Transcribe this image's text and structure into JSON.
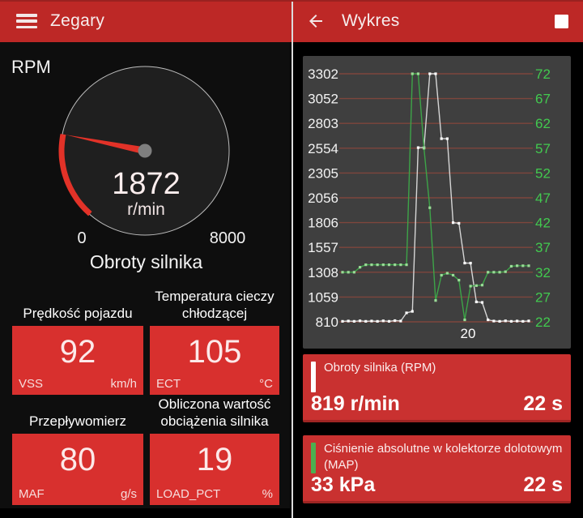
{
  "left_panel": {
    "appbar": {
      "title": "Zegary"
    },
    "gauge": {
      "corner_label": "RPM",
      "value": "1872",
      "unit": "r/min",
      "min_label": "0",
      "max_label": "8000",
      "caption": "Obroty silnika",
      "min": 0,
      "max": 8000,
      "current": 1872,
      "accent_color": "#e23228"
    },
    "tiles": [
      {
        "title": "Prędkość pojazdu",
        "value": "92",
        "pid": "VSS",
        "unit": "km/h"
      },
      {
        "title": "Temperatura cieczy chłodzącej",
        "value": "105",
        "pid": "ECT",
        "unit": "°C"
      },
      {
        "title": "Przepływomierz",
        "value": "80",
        "pid": "MAF",
        "unit": "g/s"
      },
      {
        "title": "Obliczona wartość obciążenia silnika",
        "value": "19",
        "pid": "LOAD_PCT",
        "unit": "%"
      }
    ]
  },
  "right_panel": {
    "appbar": {
      "title": "Wykres"
    },
    "cards": [
      {
        "series_color": "#ffffff",
        "label": "Obroty silnika (RPM)",
        "value": "819 r/min",
        "time": "22 s"
      },
      {
        "series_color": "#4caf50",
        "label": "Ciśnienie absolutne w kolektorze dolotowym (MAP)",
        "value": "33 kPa",
        "time": "22 s"
      }
    ]
  },
  "chart_data": {
    "type": "line",
    "background": "#3f3f3f",
    "gridline_color": "#7e463d",
    "grid": "horizontal",
    "x_axis": {
      "tick_label": "20",
      "tick_fraction": 0.674
    },
    "left_axis": {
      "color": "#f2f2f2",
      "min": 810,
      "max": 3302,
      "ticks": [
        3302,
        3052,
        2803,
        2554,
        2305,
        2056,
        1806,
        1557,
        1308,
        1059,
        810
      ]
    },
    "right_axis": {
      "color": "#42c94f",
      "min": 22,
      "max": 72,
      "ticks": [
        72,
        67,
        62,
        57,
        52,
        47,
        42,
        37,
        32,
        27,
        22
      ]
    },
    "series": [
      {
        "name": "Obroty silnika (RPM)",
        "axis": "left",
        "color": "#d6d6d6",
        "marker_color": "#ffffff",
        "values": [
          815,
          818,
          815,
          820,
          815,
          818,
          815,
          820,
          815,
          822,
          818,
          900,
          915,
          2560,
          2560,
          3302,
          3302,
          2650,
          2650,
          1806,
          1800,
          1400,
          1400,
          1010,
          1005,
          830,
          818,
          815,
          820,
          815,
          818,
          815,
          819
        ]
      },
      {
        "name": "Ciśnienie absolutne w kolektorze dolotowym (MAP)",
        "axis": "right",
        "color": "#3da448",
        "marker_color": "#9adb97",
        "values": [
          32,
          32,
          32,
          33,
          33.5,
          33.5,
          33.5,
          33.5,
          33.5,
          33.5,
          33.5,
          33.5,
          72,
          72,
          57,
          45,
          26.3,
          31.4,
          31.8,
          31.4,
          30.4,
          22.4,
          29.2,
          29.3,
          29.4,
          32,
          32,
          32,
          32.1,
          33.2,
          33.3,
          33.3,
          33.3
        ]
      }
    ]
  }
}
